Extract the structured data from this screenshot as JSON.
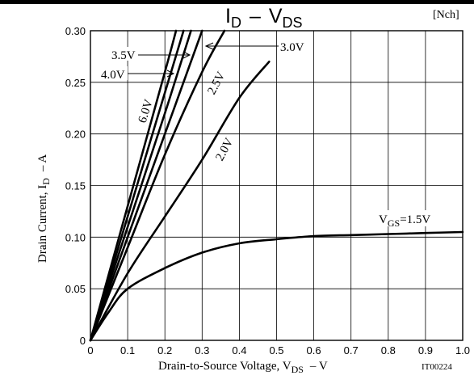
{
  "header": {
    "tag": "[Nch]"
  },
  "chart_data": {
    "type": "line",
    "title": {
      "main": "I",
      "main_sub": "D",
      "dash": "–",
      "v": "V",
      "v_sub": "DS"
    },
    "xlabel": {
      "prefix": "Drain-to-Source Voltage, V",
      "sub": "DS",
      "suffix": "– V"
    },
    "ylabel": {
      "prefix": "Drain Current, I",
      "sub": "D",
      "suffix": "– A"
    },
    "xlim": [
      0,
      1.0
    ],
    "ylim": [
      0,
      0.3
    ],
    "x_ticks": [
      "0",
      "0.1",
      "0.2",
      "0.3",
      "0.4",
      "0.5",
      "0.6",
      "0.7",
      "0.8",
      "0.9",
      "1.0"
    ],
    "y_ticks": [
      "0",
      "0.05",
      "0.10",
      "0.15",
      "0.20",
      "0.25",
      "0.30"
    ],
    "grid": true,
    "figure_id": "IT00224",
    "series": [
      {
        "name": "6.0V",
        "x": [
          0,
          0.1,
          0.2,
          0.23
        ],
        "y": [
          0,
          0.13,
          0.26,
          0.3
        ]
      },
      {
        "name": "4.0V",
        "x": [
          0,
          0.1,
          0.2,
          0.25
        ],
        "y": [
          0,
          0.12,
          0.24,
          0.3
        ]
      },
      {
        "name": "3.5V",
        "x": [
          0,
          0.1,
          0.2,
          0.27
        ],
        "y": [
          0,
          0.11,
          0.22,
          0.3
        ]
      },
      {
        "name": "3.0V",
        "x": [
          0,
          0.1,
          0.2,
          0.3
        ],
        "y": [
          0,
          0.1,
          0.2,
          0.3
        ]
      },
      {
        "name": "2.5V",
        "x": [
          0,
          0.1,
          0.2,
          0.3,
          0.36
        ],
        "y": [
          0,
          0.09,
          0.18,
          0.26,
          0.3
        ]
      },
      {
        "name": "2.0V",
        "x": [
          0,
          0.1,
          0.2,
          0.3,
          0.4,
          0.48
        ],
        "y": [
          0,
          0.065,
          0.12,
          0.175,
          0.235,
          0.27
        ]
      },
      {
        "name": "1.5V",
        "x": [
          0,
          0.05,
          0.1,
          0.2,
          0.3,
          0.4,
          0.5,
          0.6,
          0.7,
          0.8,
          0.9,
          1.0
        ],
        "y": [
          0,
          0.028,
          0.05,
          0.07,
          0.085,
          0.094,
          0.098,
          0.101,
          0.102,
          0.103,
          0.104,
          0.105
        ]
      }
    ],
    "curve_labels": {
      "vgs_prefix": "V",
      "vgs_sub": "GS",
      "vgs_value": "=1.5V",
      "v20": "2.0V",
      "v25": "2.5V",
      "v30": "3.0V",
      "v35": "3.5V",
      "v40": "4.0V",
      "v60": "6.0V"
    }
  }
}
